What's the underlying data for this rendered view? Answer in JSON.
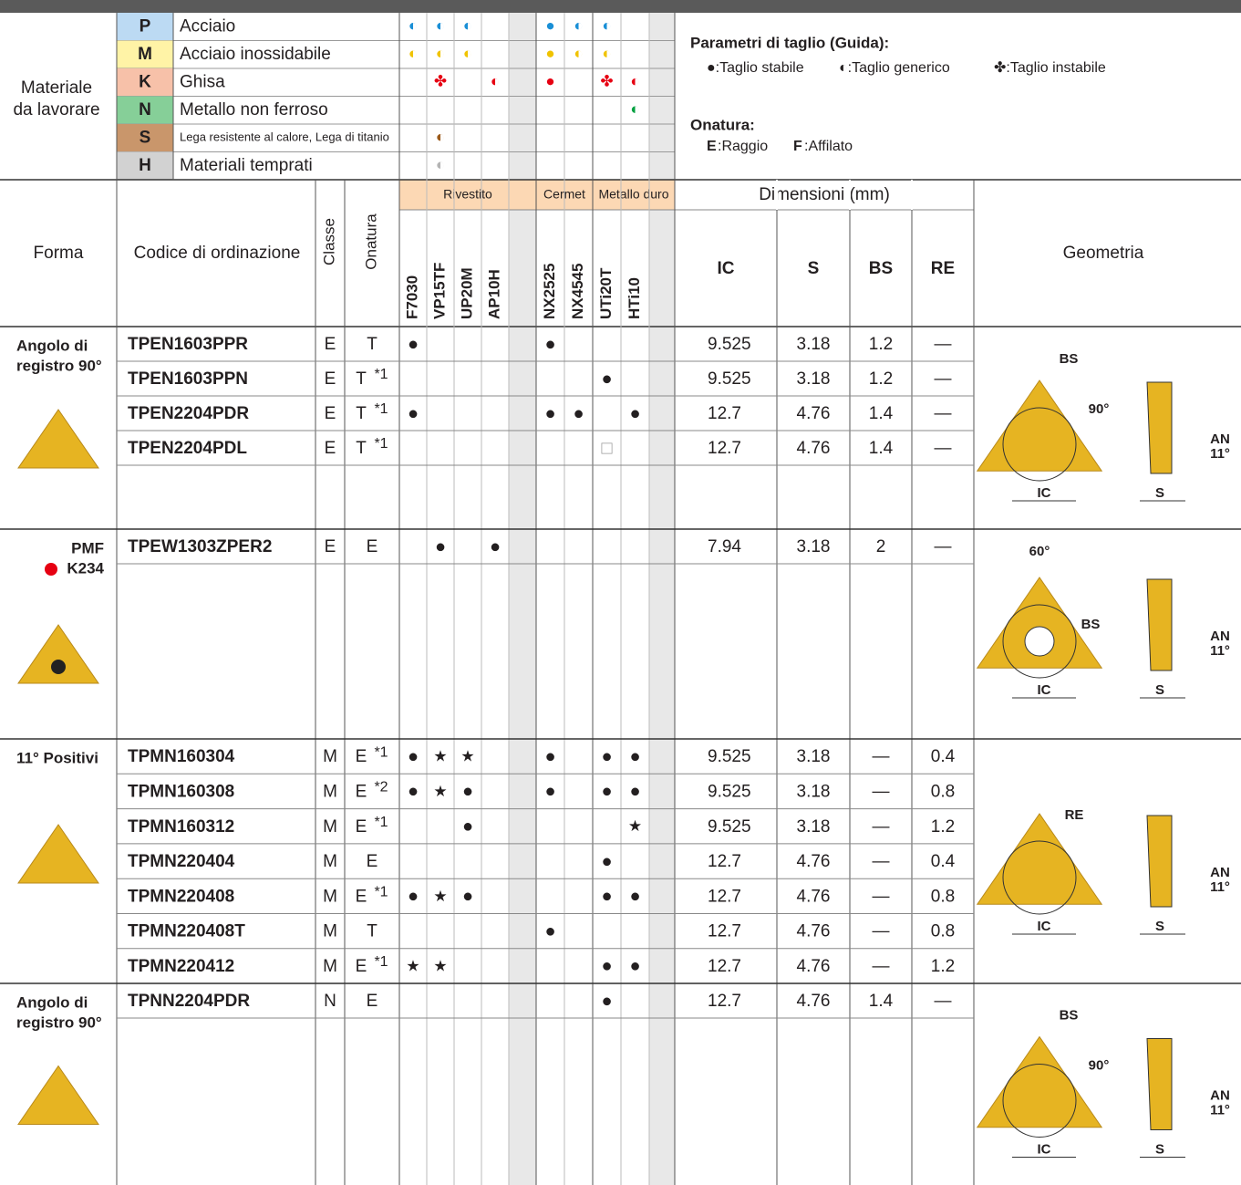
{
  "materials": {
    "label": [
      "Materiale",
      "da lavorare"
    ],
    "rows": [
      {
        "code": "P",
        "name": "Acciaio",
        "bg": "#bcdaf3",
        "color": "#1a8fd6",
        "marks": [
          "◐",
          "◐",
          "◐",
          null,
          null,
          "●",
          "◐",
          "◐",
          null,
          null
        ]
      },
      {
        "code": "M",
        "name": "Acciaio inossidabile",
        "bg": "#fff3a6",
        "color": "#f0c300",
        "marks": [
          "◐",
          "◐",
          "◐",
          null,
          null,
          "●",
          "◐",
          "◐",
          null,
          null
        ]
      },
      {
        "code": "K",
        "name": "Ghisa",
        "bg": "#f7c1a9",
        "color": "#e60012",
        "marks": [
          null,
          "✤",
          null,
          "◐",
          null,
          "●",
          null,
          "✤",
          "◐",
          null
        ]
      },
      {
        "code": "N",
        "name": "Metallo non ferroso",
        "bg": "#86cf98",
        "color": "#00a040",
        "marks": [
          null,
          null,
          null,
          null,
          null,
          null,
          null,
          null,
          "◐",
          null
        ]
      },
      {
        "code": "S",
        "name": "Lega resistente al calore, Lega di titanio",
        "bg": "#c9966b",
        "color": "#9b5a1a",
        "marks": [
          null,
          "◐",
          null,
          null,
          null,
          null,
          null,
          null,
          null,
          null
        ]
      },
      {
        "code": "H",
        "name": "Materiali temprati",
        "bg": "#d2d2d2",
        "color": "#b4b4b4",
        "marks": [
          null,
          "◐",
          null,
          null,
          null,
          null,
          null,
          null,
          null,
          null
        ]
      }
    ]
  },
  "guide": {
    "title": "Parametri di taglio (Guida):",
    "items": [
      "●:Taglio stabile",
      "◐:Taglio generico",
      "✤:Taglio instabile"
    ],
    "onatura_title": "Onatura:",
    "onatura_items": [
      {
        "key": "E",
        "text": ":Raggio"
      },
      {
        "key": "F",
        "text": ":Affilato"
      }
    ]
  },
  "header": {
    "forma": "Forma",
    "codice": "Codice di ordinazione",
    "classe": "Classe",
    "onatura": "Onatura",
    "grade_groups": [
      {
        "name": "Rivestito",
        "span": [
          0,
          4
        ]
      },
      {
        "name": "Cermet",
        "span": [
          5,
          6
        ]
      },
      {
        "name": "Metallo duro",
        "span": [
          7,
          9
        ]
      }
    ],
    "grades": [
      "F7030",
      "VP15TF",
      "UP20M",
      "AP10H",
      null,
      "NX2525",
      "NX4545",
      "UTi20T",
      "HTi10",
      null
    ],
    "dimensioni": "Dimensioni (mm)",
    "dims": [
      "IC",
      "S",
      "BS",
      "RE"
    ],
    "geometria": "Geometria"
  },
  "groups": [
    {
      "forma": [
        "Angolo di",
        "registro 90°"
      ],
      "geometry": [
        "BS",
        "90°",
        "IC",
        "S",
        "AN",
        "11°"
      ],
      "rows": [
        {
          "code": "TPEN1603PPR",
          "classe": "E",
          "onatura": "T",
          "note": null,
          "grades": [
            "●",
            null,
            null,
            null,
            null,
            "●",
            null,
            null,
            null,
            null
          ],
          "dims": [
            9.525,
            3.18,
            1.2,
            "—"
          ]
        },
        {
          "code": "TPEN1603PPN",
          "classe": "E",
          "onatura": "T",
          "note": "*1",
          "grades": [
            null,
            null,
            null,
            null,
            null,
            null,
            null,
            "●",
            null,
            null
          ],
          "dims": [
            9.525,
            3.18,
            1.2,
            "—"
          ]
        },
        {
          "code": "TPEN2204PDR",
          "classe": "E",
          "onatura": "T",
          "note": "*1",
          "grades": [
            "●",
            null,
            null,
            null,
            null,
            "●",
            "●",
            null,
            "●",
            null
          ],
          "dims": [
            12.7,
            4.76,
            1.4,
            "—"
          ]
        },
        {
          "code": "TPEN2204PDL",
          "classe": "E",
          "onatura": "T",
          "note": "*1",
          "grades": [
            null,
            null,
            null,
            null,
            null,
            null,
            null,
            "□",
            null,
            null
          ],
          "dims": [
            12.7,
            4.76,
            1.4,
            "—"
          ]
        }
      ]
    },
    {
      "forma": [
        "PMF",
        "K234"
      ],
      "geometry": [
        "60°",
        "BS",
        "IC",
        "S",
        "AN",
        "11°"
      ],
      "rows": [
        {
          "code": "TPEW1303ZPER2",
          "classe": "E",
          "onatura": "E",
          "note": null,
          "grades": [
            null,
            "●",
            null,
            "●",
            null,
            null,
            null,
            null,
            null,
            null
          ],
          "dims": [
            7.94,
            3.18,
            2,
            "—"
          ]
        }
      ]
    },
    {
      "forma": [
        "11° Positivi"
      ],
      "geometry": [
        "RE",
        "IC",
        "S",
        "AN",
        "11°"
      ],
      "rows": [
        {
          "code": "TPMN160304",
          "classe": "M",
          "onatura": "E",
          "note": "*1",
          "grades": [
            "●",
            "★",
            "★",
            null,
            null,
            "●",
            null,
            "●",
            "●",
            null
          ],
          "dims": [
            9.525,
            3.18,
            "—",
            0.4
          ]
        },
        {
          "code": "TPMN160308",
          "classe": "M",
          "onatura": "E",
          "note": "*2",
          "grades": [
            "●",
            "★",
            "●",
            null,
            null,
            "●",
            null,
            "●",
            "●",
            null
          ],
          "dims": [
            9.525,
            3.18,
            "—",
            0.8
          ]
        },
        {
          "code": "TPMN160312",
          "classe": "M",
          "onatura": "E",
          "note": "*1",
          "grades": [
            null,
            null,
            "●",
            null,
            null,
            null,
            null,
            null,
            "★",
            null
          ],
          "dims": [
            9.525,
            3.18,
            "—",
            1.2
          ]
        },
        {
          "code": "TPMN220404",
          "classe": "M",
          "onatura": "E",
          "note": null,
          "grades": [
            null,
            null,
            null,
            null,
            null,
            null,
            null,
            "●",
            null,
            null
          ],
          "dims": [
            12.7,
            4.76,
            "—",
            0.4
          ]
        },
        {
          "code": "TPMN220408",
          "classe": "M",
          "onatura": "E",
          "note": "*1",
          "grades": [
            "●",
            "★",
            "●",
            null,
            null,
            null,
            null,
            "●",
            "●",
            null
          ],
          "dims": [
            12.7,
            4.76,
            "—",
            0.8
          ]
        },
        {
          "code": "TPMN220408T",
          "classe": "M",
          "onatura": "T",
          "note": null,
          "grades": [
            null,
            null,
            null,
            null,
            null,
            "●",
            null,
            null,
            null,
            null
          ],
          "dims": [
            12.7,
            4.76,
            "—",
            0.8
          ]
        },
        {
          "code": "TPMN220412",
          "classe": "M",
          "onatura": "E",
          "note": "*1",
          "grades": [
            "★",
            "★",
            null,
            null,
            null,
            null,
            null,
            "●",
            "●",
            null
          ],
          "dims": [
            12.7,
            4.76,
            "—",
            1.2
          ]
        }
      ]
    },
    {
      "forma": [
        "Angolo di",
        "registro 90°"
      ],
      "geometry": [
        "BS",
        "90°",
        "IC",
        "S",
        "AN",
        "11°"
      ],
      "rows": [
        {
          "code": "TPNN2204PDR",
          "classe": "N",
          "onatura": "E",
          "note": null,
          "grades": [
            null,
            null,
            null,
            null,
            null,
            null,
            null,
            "●",
            null,
            null
          ],
          "dims": [
            12.7,
            4.76,
            1.4,
            "—"
          ]
        }
      ]
    }
  ]
}
